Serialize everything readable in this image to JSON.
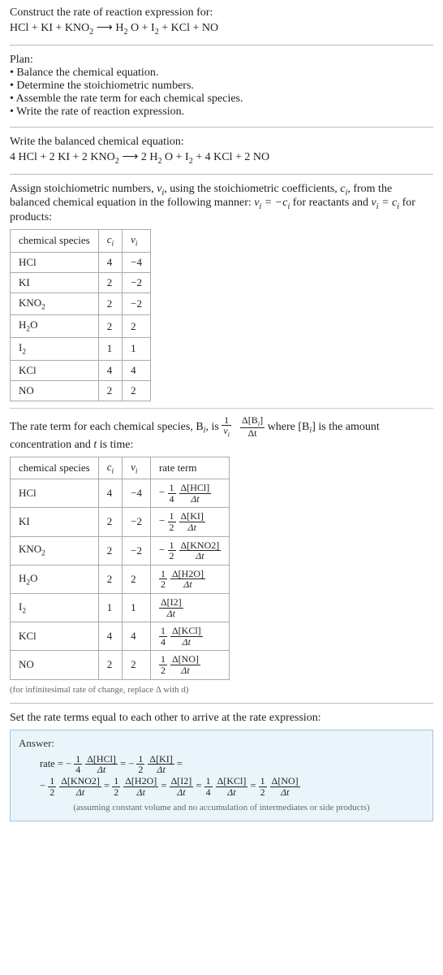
{
  "header": {
    "prompt": "Construct the rate of reaction expression for:",
    "equation_lhs": "HCl + KI + KNO",
    "equation_sub1": "2",
    "arrow": " ⟶ ",
    "equation_rhs1": "H",
    "equation_rhs1s": "2",
    "equation_rhs2": "O + I",
    "equation_rhs2s": "2",
    "equation_rhs3": " + KCl + NO"
  },
  "plan": {
    "title": "Plan:",
    "b1": "• Balance the chemical equation.",
    "b2": "• Determine the stoichiometric numbers.",
    "b3": "• Assemble the rate term for each chemical species.",
    "b4": "• Write the rate of reaction expression."
  },
  "balanced": {
    "title": "Write the balanced chemical equation:",
    "lhs1": "4 HCl + 2 KI + 2 KNO",
    "lhs1s": "2",
    "arrow": " ⟶ ",
    "rhs1": "2 H",
    "rhs1s": "2",
    "rhs2": "O + I",
    "rhs2s": "2",
    "rhs3": " + 4 KCl + 2 NO"
  },
  "assign_text_a": "Assign stoichiometric numbers, ",
  "assign_text_b": ", using the stoichiometric coefficients, ",
  "assign_text_c": ", from the balanced chemical equation in the following manner: ",
  "assign_text_d": " for reactants and ",
  "assign_text_e": " for products:",
  "nu_i": "ν",
  "nu_sub": "i",
  "c_i": "c",
  "c_sub": "i",
  "rel1a": "ν",
  "rel1b": " = −",
  "rel2a": "ν",
  "rel2b": " = ",
  "table1": {
    "h1": "chemical species",
    "h2": "c",
    "h2s": "i",
    "h3": "ν",
    "h3s": "i",
    "rows": [
      {
        "sp": "HCl",
        "sub": "",
        "c": "4",
        "nu": "−4"
      },
      {
        "sp": "KI",
        "sub": "",
        "c": "2",
        "nu": "−2"
      },
      {
        "sp": "KNO",
        "sub": "2",
        "c": "2",
        "nu": "−2"
      },
      {
        "sp": "H",
        "sub": "2",
        "sp2": "O",
        "c": "2",
        "nu": "2"
      },
      {
        "sp": "I",
        "sub": "2",
        "c": "1",
        "nu": "1"
      },
      {
        "sp": "KCl",
        "sub": "",
        "c": "4",
        "nu": "4"
      },
      {
        "sp": "NO",
        "sub": "",
        "c": "2",
        "nu": "2"
      }
    ]
  },
  "rate_intro_a": "The rate term for each chemical species, B",
  "rate_intro_b": ", is ",
  "rate_intro_c": " where [B",
  "rate_intro_d": "] is the amount concentration and ",
  "rate_intro_e": " is time:",
  "t_label": "t",
  "i_label": "i",
  "frac_demo_num1": "1",
  "frac_demo_den1_a": "ν",
  "frac_demo_num2": "Δ[B",
  "frac_demo_num2b": "]",
  "frac_demo_den2": "Δt",
  "table2": {
    "h1": "chemical species",
    "h2": "c",
    "h2s": "i",
    "h3": "ν",
    "h3s": "i",
    "h4": "rate term",
    "rows": [
      {
        "sp": "HCl",
        "sub": "",
        "c": "4",
        "nu": "−4",
        "sign": "−",
        "fn": "1",
        "fd": "4",
        "dn": "Δ[HCl]",
        "dd": "Δt"
      },
      {
        "sp": "KI",
        "sub": "",
        "c": "2",
        "nu": "−2",
        "sign": "−",
        "fn": "1",
        "fd": "2",
        "dn": "Δ[KI]",
        "dd": "Δt"
      },
      {
        "sp": "KNO",
        "sub": "2",
        "c": "2",
        "nu": "−2",
        "sign": "−",
        "fn": "1",
        "fd": "2",
        "dn": "Δ[KNO2]",
        "dd": "Δt"
      },
      {
        "sp": "H",
        "sub": "2",
        "sp2": "O",
        "c": "2",
        "nu": "2",
        "sign": "",
        "fn": "1",
        "fd": "2",
        "dn": "Δ[H2O]",
        "dd": "Δt"
      },
      {
        "sp": "I",
        "sub": "2",
        "c": "1",
        "nu": "1",
        "sign": "",
        "fn": "",
        "fd": "",
        "dn": "Δ[I2]",
        "dd": "Δt"
      },
      {
        "sp": "KCl",
        "sub": "",
        "c": "4",
        "nu": "4",
        "sign": "",
        "fn": "1",
        "fd": "4",
        "dn": "Δ[KCl]",
        "dd": "Δt"
      },
      {
        "sp": "NO",
        "sub": "",
        "c": "2",
        "nu": "2",
        "sign": "",
        "fn": "1",
        "fd": "2",
        "dn": "Δ[NO]",
        "dd": "Δt"
      }
    ]
  },
  "inf_note": "(for infinitesimal rate of change, replace Δ with d)",
  "set_equal": "Set the rate terms equal to each other to arrive at the rate expression:",
  "answer": {
    "label": "Answer:",
    "rate_eq": "rate = ",
    "eq": " = ",
    "terms": [
      {
        "sign": "−",
        "fn": "1",
        "fd": "4",
        "dn": "Δ[HCl]",
        "dd": "Δt"
      },
      {
        "sign": "−",
        "fn": "1",
        "fd": "2",
        "dn": "Δ[KI]",
        "dd": "Δt"
      },
      {
        "sign": "−",
        "fn": "1",
        "fd": "2",
        "dn": "Δ[KNO2]",
        "dd": "Δt"
      },
      {
        "sign": "",
        "fn": "1",
        "fd": "2",
        "dn": "Δ[H2O]",
        "dd": "Δt"
      },
      {
        "sign": "",
        "fn": "",
        "fd": "",
        "dn": "Δ[I2]",
        "dd": "Δt"
      },
      {
        "sign": "",
        "fn": "1",
        "fd": "4",
        "dn": "Δ[KCl]",
        "dd": "Δt"
      },
      {
        "sign": "",
        "fn": "1",
        "fd": "2",
        "dn": "Δ[NO]",
        "dd": "Δt"
      }
    ],
    "note": "(assuming constant volume and no accumulation of intermediates or side products)"
  },
  "colors": {
    "text": "#222222",
    "border": "#aaaaaa",
    "answer_bg": "#eaf5fb",
    "answer_border": "#9ec7e0",
    "note": "#666666"
  }
}
